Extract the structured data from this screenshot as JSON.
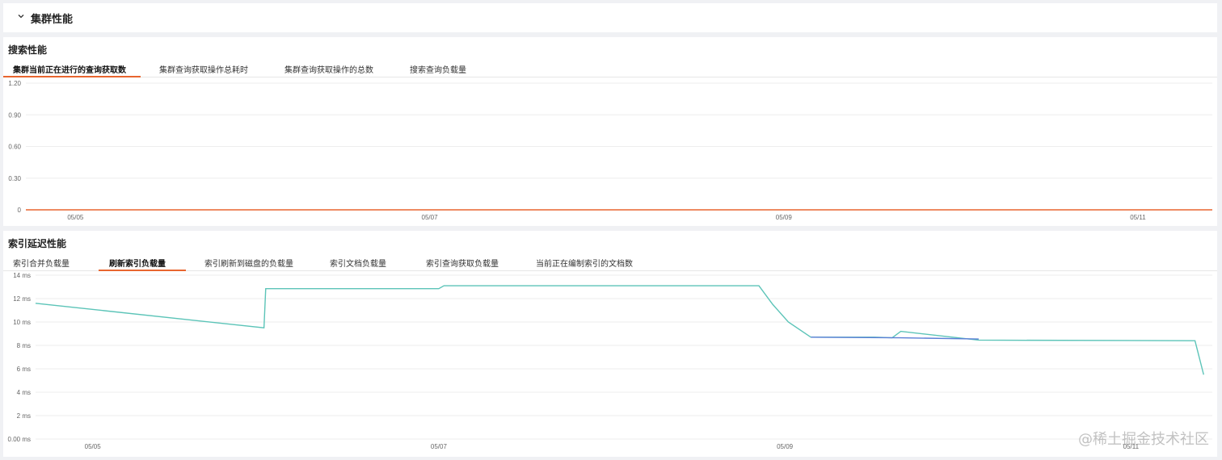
{
  "header": {
    "title": "集群性能"
  },
  "panel1": {
    "title": "搜索性能",
    "tabs": [
      {
        "label": "集群当前正在进行的查询获取数",
        "active": true
      },
      {
        "label": "集群查询获取操作总耗时",
        "active": false
      },
      {
        "label": "集群查询获取操作的总数",
        "active": false
      },
      {
        "label": "搜索查询负载量",
        "active": false
      }
    ]
  },
  "panel2": {
    "title": "索引延迟性能",
    "tabs": [
      {
        "label": "索引合并负载量",
        "active": false
      },
      {
        "label": "刷新索引负载量",
        "active": true
      },
      {
        "label": "索引刷新到磁盘的负载量",
        "active": false
      },
      {
        "label": "索引文档负载量",
        "active": false
      },
      {
        "label": "索引查询获取负载量",
        "active": false
      },
      {
        "label": "当前正在编制索引的文档数",
        "active": false
      }
    ]
  },
  "watermark": "@稀土掘金技术社区",
  "colors": {
    "accent": "#e8652f",
    "series_primary": "#5cc4b8",
    "series_secondary": "#5b7fd6",
    "grid": "#eeeeee"
  },
  "chart_data": [
    {
      "type": "line",
      "yticks": [
        "1.20",
        "0.90",
        "0.60",
        "0.30",
        "0"
      ],
      "ylim": [
        0,
        1.2
      ],
      "xticks": [
        "05/05",
        "05/07",
        "05/09",
        "05/11"
      ],
      "xlim": [
        0,
        6.7
      ],
      "xtick_positions": [
        0.28,
        2.28,
        4.28,
        6.28
      ],
      "series": [
        {
          "color": "#e8652f",
          "x": [
            0,
            6.7
          ],
          "y": [
            0,
            0
          ]
        }
      ]
    },
    {
      "type": "line",
      "yticks": [
        "14 ms",
        "12 ms",
        "10 ms",
        "8 ms",
        "6 ms",
        "4 ms",
        "2 ms",
        "0.00 ms"
      ],
      "ylim": [
        0,
        14
      ],
      "xticks": [
        "05/05",
        "05/07",
        "05/09",
        "05/11"
      ],
      "xlim": [
        0,
        6.8
      ],
      "xtick_positions": [
        0.33,
        2.33,
        4.33,
        6.33
      ],
      "series": [
        {
          "color": "#5cc4b8",
          "x": [
            0,
            1.32,
            1.33,
            2.33,
            2.36,
            4.18,
            4.26,
            4.35,
            4.48,
            4.85,
            4.95,
            5.0,
            5.45,
            6.7,
            6.75
          ],
          "y": [
            11.6,
            9.5,
            12.85,
            12.85,
            13.1,
            13.1,
            11.5,
            10.0,
            8.7,
            8.7,
            8.65,
            9.2,
            8.45,
            8.4,
            5.5
          ]
        },
        {
          "color": "#5b7fd6",
          "x": [
            4.48,
            5.0,
            5.45
          ],
          "y": [
            8.7,
            8.65,
            8.55
          ]
        }
      ]
    }
  ]
}
